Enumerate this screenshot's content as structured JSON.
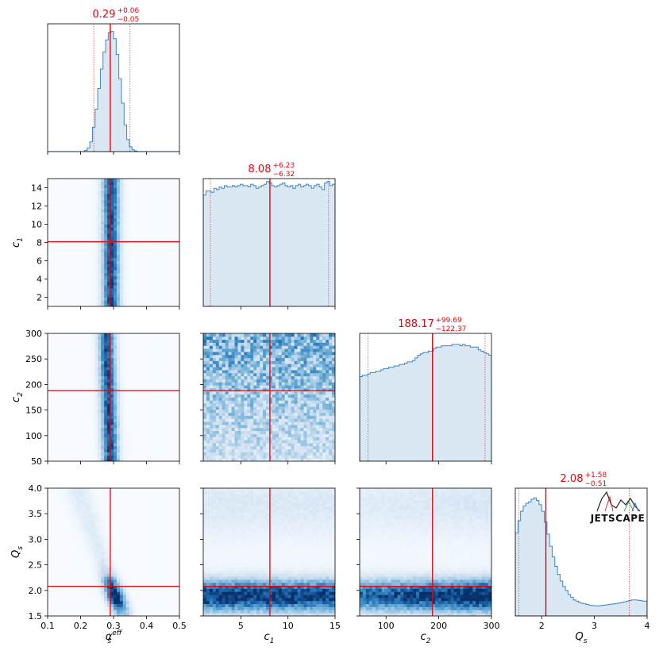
{
  "chart_data": {
    "type": "corner",
    "parameters": [
      {
        "key": "alpha",
        "label": "α",
        "sub": "s",
        "sup": "eff",
        "range": [
          0.1,
          0.5
        ],
        "ticks": [
          "0.1",
          "0.2",
          "0.3",
          "0.4",
          "0.5"
        ],
        "tick_values": [
          0.1,
          0.2,
          0.3,
          0.4,
          0.5
        ],
        "median": 0.29,
        "plus": 0.06,
        "minus": 0.05,
        "median_text": "0.29",
        "plus_text": "+0.06",
        "minus_text": "−0.05",
        "histogram": [
          0,
          0,
          0,
          0,
          0,
          0,
          0,
          0,
          0,
          0,
          0,
          0,
          0,
          0,
          0.01,
          0.03,
          0.08,
          0.2,
          0.35,
          0.52,
          0.68,
          0.82,
          0.92,
          0.98,
          0.99,
          0.93,
          0.8,
          0.6,
          0.4,
          0.22,
          0.1,
          0.04,
          0.015,
          0.005,
          0,
          0,
          0,
          0,
          0,
          0,
          0,
          0,
          0,
          0,
          0,
          0,
          0,
          0,
          0,
          0
        ]
      },
      {
        "key": "c1",
        "label": "c",
        "sub": "1",
        "sup": "",
        "range": [
          1,
          15
        ],
        "ticks": [
          "2",
          "4",
          "6",
          "8",
          "10",
          "12",
          "14"
        ],
        "tick_values": [
          2,
          4,
          6,
          8,
          10,
          12,
          14
        ],
        "xticks": [
          "5",
          "10",
          "15"
        ],
        "xtick_values": [
          5,
          10,
          15
        ],
        "median": 8.08,
        "plus": 6.23,
        "minus": 6.32,
        "median_text": "8.08",
        "plus_text": "+6.23",
        "minus_text": "−6.32",
        "histogram": [
          0.83,
          0.86,
          0.86,
          0.85,
          0.88,
          0.87,
          0.89,
          0.88,
          0.9,
          0.89,
          0.89,
          0.9,
          0.89,
          0.9,
          0.91,
          0.9,
          0.9,
          0.89,
          0.91,
          0.9,
          0.88,
          0.89,
          0.9,
          0.91,
          0.93,
          0.92,
          0.9,
          0.89,
          0.9,
          0.91,
          0.92,
          0.9,
          0.89,
          0.9,
          0.88,
          0.9,
          0.91,
          0.89,
          0.9,
          0.91,
          0.9,
          0.88,
          0.9,
          0.91,
          0.89,
          0.87,
          0.92,
          0.93,
          0.9,
          0.91
        ]
      },
      {
        "key": "c2",
        "label": "c",
        "sub": "2",
        "sup": "",
        "range": [
          50,
          300
        ],
        "ticks": [
          "50",
          "100",
          "150",
          "200",
          "250",
          "300"
        ],
        "tick_values": [
          50,
          100,
          150,
          200,
          250,
          300
        ],
        "xticks": [
          "100",
          "200",
          "300"
        ],
        "xtick_values": [
          100,
          200,
          300
        ],
        "median": 188.17,
        "plus": 99.69,
        "minus": 122.37,
        "median_text": "188.17",
        "plus_text": "+99.69",
        "minus_text": "−122.37",
        "histogram": [
          0.63,
          0.64,
          0.64,
          0.65,
          0.66,
          0.66,
          0.67,
          0.67,
          0.68,
          0.69,
          0.69,
          0.7,
          0.7,
          0.71,
          0.71,
          0.72,
          0.72,
          0.73,
          0.74,
          0.74,
          0.75,
          0.77,
          0.79,
          0.8,
          0.81,
          0.81,
          0.82,
          0.82,
          0.84,
          0.85,
          0.85,
          0.86,
          0.86,
          0.86,
          0.86,
          0.87,
          0.87,
          0.87,
          0.86,
          0.87,
          0.86,
          0.86,
          0.85,
          0.85,
          0.85,
          0.83,
          0.82,
          0.81,
          0.8,
          0.79
        ]
      },
      {
        "key": "Qs",
        "label": "Q",
        "sub": "s",
        "sup": "",
        "range": [
          1.5,
          4.0
        ],
        "ticks": [
          "1.5",
          "2.0",
          "2.5",
          "3.0",
          "3.5",
          "4.0"
        ],
        "tick_values": [
          1.5,
          2.0,
          2.5,
          3.0,
          3.5,
          4.0
        ],
        "xticks": [
          "2",
          "3",
          "4"
        ],
        "xtick_values": [
          2,
          3,
          4
        ],
        "median": 2.08,
        "plus": 1.58,
        "minus": 0.51,
        "median_text": "2.08",
        "plus_text": "+1.58",
        "minus_text": "−0.51",
        "histogram": [
          0.62,
          0.71,
          0.78,
          0.82,
          0.84,
          0.85,
          0.87,
          0.88,
          0.86,
          0.83,
          0.78,
          0.7,
          0.61,
          0.52,
          0.44,
          0.37,
          0.31,
          0.26,
          0.22,
          0.19,
          0.16,
          0.14,
          0.12,
          0.11,
          0.1,
          0.095,
          0.09,
          0.085,
          0.08,
          0.078,
          0.076,
          0.075,
          0.078,
          0.08,
          0.082,
          0.085,
          0.088,
          0.09,
          0.093,
          0.096,
          0.1,
          0.105,
          0.11,
          0.115,
          0.12,
          0.12,
          0.118,
          0.115,
          0.112,
          0.11
        ]
      }
    ],
    "logo_text": "JETSCAPE"
  }
}
